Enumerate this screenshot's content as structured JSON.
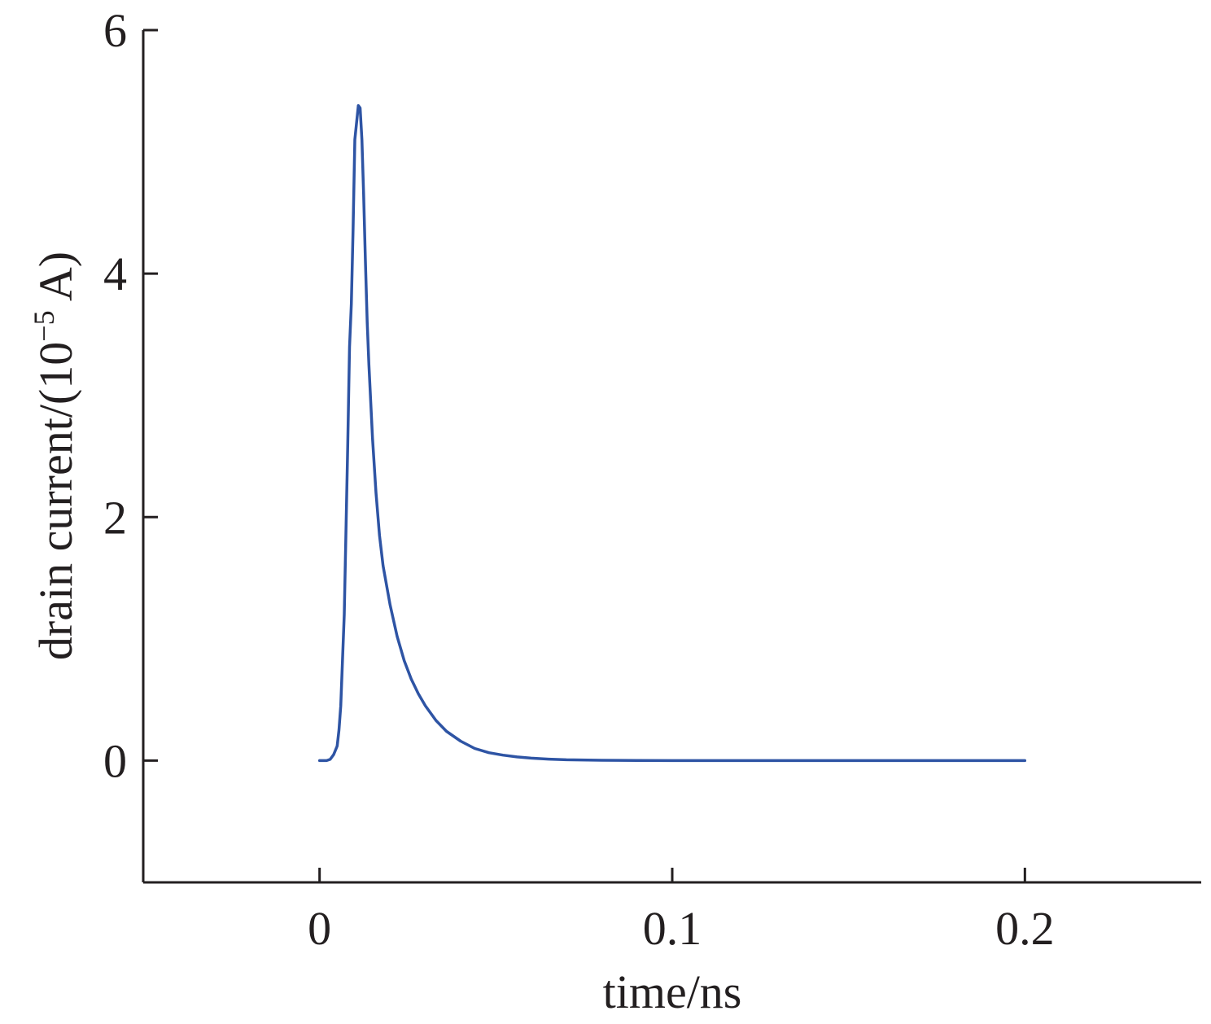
{
  "chart_data": {
    "type": "line",
    "title": "",
    "xlabel": "time/ns",
    "ylabel": "drain current/(10",
    "ylabel_sup": "−5",
    "ylabel_tail": " A)",
    "xlim": [
      -0.05,
      0.25
    ],
    "ylim": [
      -1,
      6
    ],
    "xticks": [
      0,
      0.1,
      0.2
    ],
    "xtick_labels": [
      "0",
      "0.1",
      "0.2"
    ],
    "yticks": [
      0,
      2,
      4,
      6
    ],
    "ytick_labels": [
      "0",
      "2",
      "4",
      "6"
    ],
    "grid": false,
    "legend": "none",
    "color": "#2e54a4",
    "series": [
      {
        "x": [
          0,
          0.001,
          0.002,
          0.003,
          0.004,
          0.005,
          0.0055,
          0.006,
          0.007,
          0.008,
          0.0085,
          0.009,
          0.0095,
          0.01,
          0.011,
          0.0115,
          0.012,
          0.0125,
          0.013,
          0.0135,
          0.014,
          0.015,
          0.016,
          0.017,
          0.018,
          0.02,
          0.022,
          0.024,
          0.026,
          0.028,
          0.03,
          0.033,
          0.036,
          0.04,
          0.044,
          0.048,
          0.052,
          0.056,
          0.06,
          0.065,
          0.07,
          0.08,
          0.09,
          0.1,
          0.12,
          0.15,
          0.18,
          0.2
        ],
        "y": [
          0,
          0,
          0,
          0.01,
          0.05,
          0.12,
          0.25,
          0.45,
          1.2,
          2.6,
          3.4,
          3.75,
          4.35,
          5.1,
          5.38,
          5.36,
          5.1,
          4.65,
          4.1,
          3.6,
          3.25,
          2.65,
          2.2,
          1.85,
          1.6,
          1.28,
          1.02,
          0.82,
          0.67,
          0.55,
          0.45,
          0.33,
          0.24,
          0.16,
          0.1,
          0.065,
          0.045,
          0.03,
          0.02,
          0.012,
          0.007,
          0.003,
          0.001,
          0,
          0,
          0,
          0,
          0
        ]
      }
    ]
  }
}
